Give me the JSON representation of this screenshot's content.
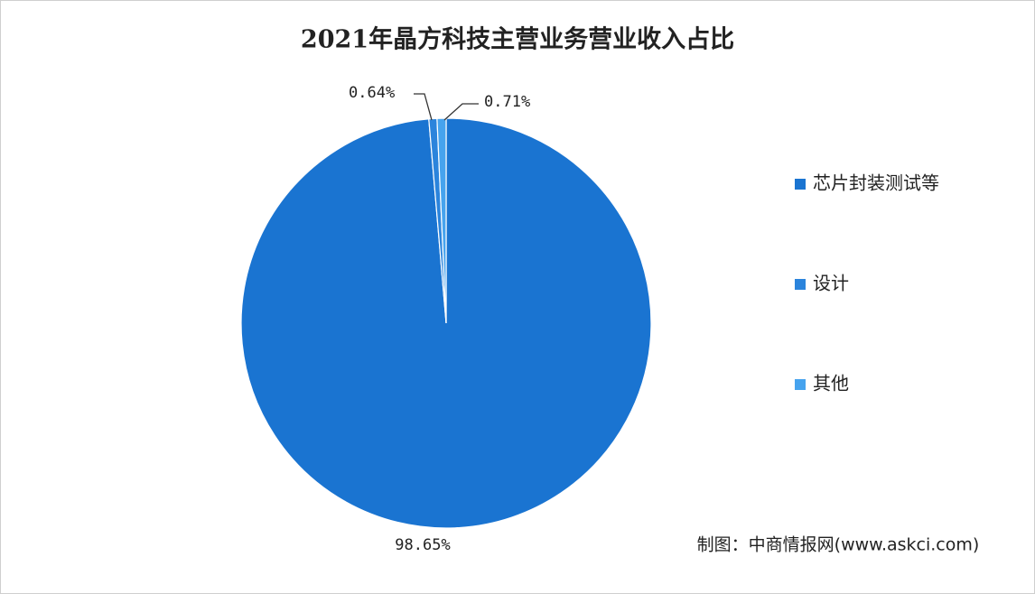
{
  "chart_data": {
    "type": "pie",
    "title": "2021年晶方科技主营业务营业收入占比",
    "categories": [
      "芯片封装测试等",
      "设计",
      "其他"
    ],
    "values": [
      98.65,
      0.64,
      0.71
    ],
    "value_labels": [
      "98.65%",
      "0.64%",
      "0.71%"
    ],
    "colors": [
      "#1a74d1",
      "#2b84dc",
      "#46a3ee"
    ],
    "legend": "right",
    "source": "制图：中商情报网(www.askci.com)"
  }
}
